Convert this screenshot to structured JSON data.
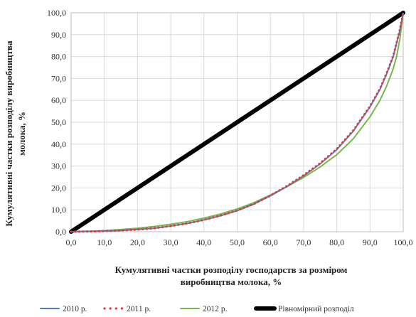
{
  "chart_data": {
    "type": "line",
    "title": "",
    "xlabel": [
      "Кумулятивні частки розподілу господарств за розміром",
      "виробництва молока, %"
    ],
    "ylabel": [
      "Кумулятивні частки розподілу виробництва",
      "молока, %"
    ],
    "xlim": [
      0,
      100
    ],
    "ylim": [
      0,
      100
    ],
    "x_ticks": [
      "0,0",
      "10,0",
      "20,0",
      "30,0",
      "40,0",
      "50,0",
      "60,0",
      "70,0",
      "80,0",
      "90,0",
      "100,0"
    ],
    "y_ticks": [
      "0,0",
      "10,0",
      "20,0",
      "30,0",
      "40,0",
      "50,0",
      "60,0",
      "70,0",
      "80,0",
      "90,0",
      "100,0"
    ],
    "grid": true,
    "legend_position": "bottom",
    "series": [
      {
        "name": "2010 р.",
        "color": "#4a7ec9",
        "style": "solid",
        "x": [
          0,
          5,
          10,
          15,
          20,
          25,
          30,
          35,
          40,
          45,
          50,
          55,
          60,
          65,
          70,
          75,
          80,
          85,
          90,
          93,
          95,
          97,
          98,
          99,
          100
        ],
        "y": [
          0,
          0.1,
          0.3,
          0.6,
          1.0,
          1.6,
          2.6,
          3.8,
          5.4,
          7.3,
          9.6,
          12.6,
          16.4,
          20.7,
          25.5,
          31.0,
          37.5,
          46.0,
          57.0,
          65.0,
          72.0,
          80.0,
          86.0,
          92.0,
          100
        ]
      },
      {
        "name": "2011 р.",
        "color": "#e03c3c",
        "style": "dotted",
        "x": [
          0,
          5,
          10,
          15,
          20,
          25,
          30,
          35,
          40,
          45,
          50,
          55,
          60,
          65,
          70,
          75,
          80,
          85,
          90,
          93,
          95,
          97,
          98,
          99,
          100
        ],
        "y": [
          0,
          0.1,
          0.3,
          0.6,
          1.0,
          1.6,
          2.6,
          3.8,
          5.4,
          7.4,
          9.7,
          12.7,
          16.5,
          20.9,
          25.8,
          31.3,
          37.8,
          46.3,
          57.3,
          65.3,
          72.3,
          80.3,
          86.3,
          92.3,
          100
        ]
      },
      {
        "name": "2012 р.",
        "color": "#7ab648",
        "style": "solid",
        "x": [
          0,
          5,
          10,
          15,
          20,
          25,
          30,
          35,
          40,
          45,
          50,
          55,
          60,
          65,
          70,
          75,
          80,
          85,
          90,
          93,
          95,
          97,
          98,
          99,
          100
        ],
        "y": [
          0,
          0.2,
          0.5,
          1.0,
          1.6,
          2.4,
          3.4,
          4.6,
          6.2,
          8.1,
          10.4,
          13.2,
          16.8,
          20.6,
          24.8,
          29.6,
          35.2,
          42.5,
          52.5,
          60.0,
          66.5,
          74.5,
          80.0,
          88.0,
          100
        ]
      },
      {
        "name": "Рівномірний розподіл",
        "color": "#000000",
        "style": "thick",
        "x": [
          0,
          100
        ],
        "y": [
          0,
          100
        ]
      }
    ]
  }
}
